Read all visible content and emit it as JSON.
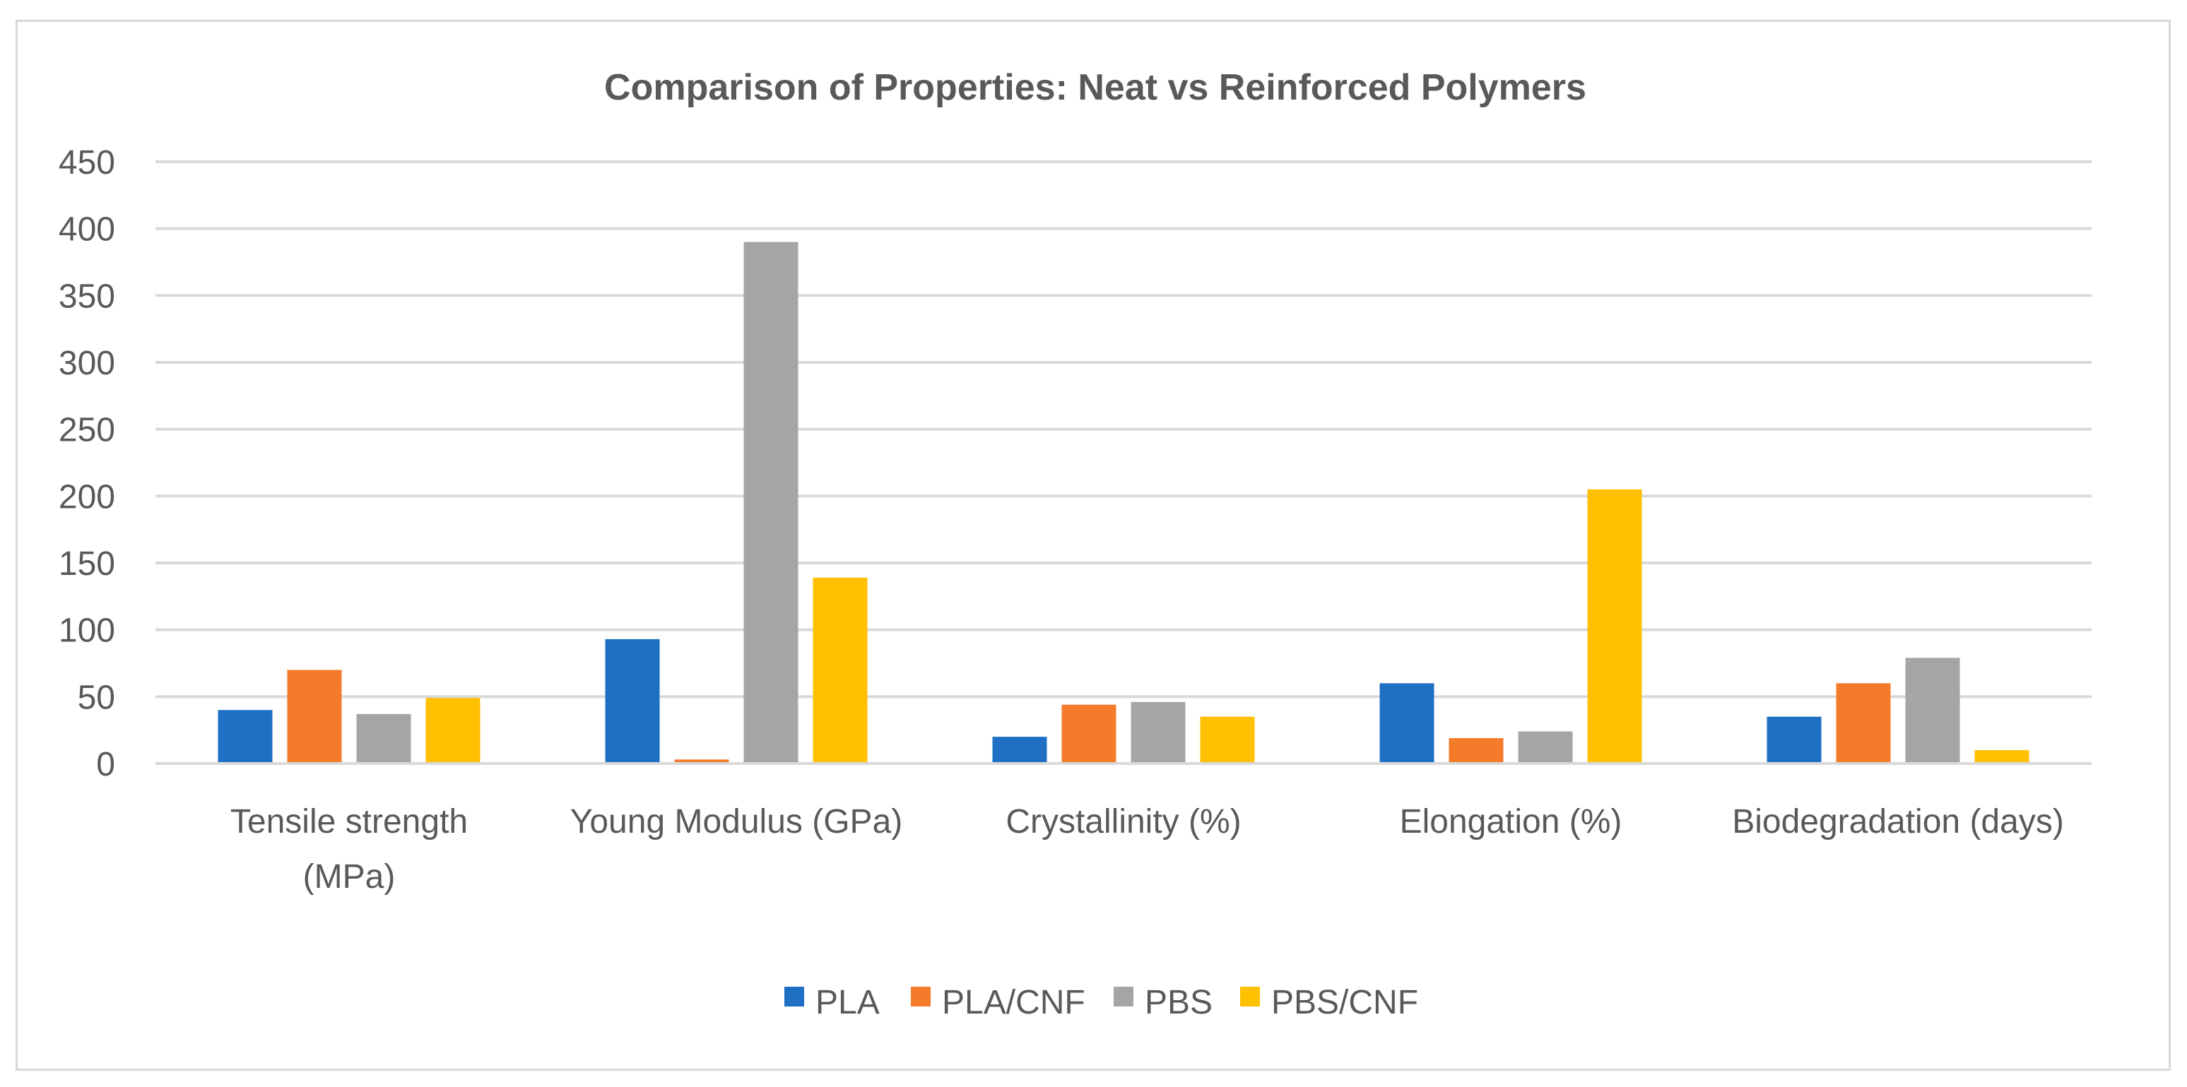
{
  "chart_data": {
    "type": "bar",
    "title": "Comparison of Properties: Neat vs Reinforced Polymers",
    "xlabel": "",
    "ylabel": "",
    "ylim": [
      0,
      450
    ],
    "yticks": [
      0,
      50,
      100,
      150,
      200,
      250,
      300,
      350,
      400,
      450
    ],
    "grid": true,
    "legend_position": "bottom",
    "categories": [
      [
        "Tensile strength",
        "(MPa)"
      ],
      [
        "Young Modulus (GPa)"
      ],
      [
        "Crystallinity (%)"
      ],
      [
        "Elongation (%)"
      ],
      [
        "Biodegradation (days)"
      ]
    ],
    "series": [
      {
        "name": "PLA",
        "color": "#1f6fc5",
        "values": [
          40,
          93,
          20,
          60,
          35
        ]
      },
      {
        "name": "PLA/CNF",
        "color": "#f47b2a",
        "values": [
          70,
          3,
          44,
          19,
          60
        ]
      },
      {
        "name": "PBS",
        "color": "#a5a5a5",
        "values": [
          37,
          390,
          46,
          24,
          79
        ]
      },
      {
        "name": "PBS/CNF",
        "color": "#ffc000",
        "values": [
          49,
          139,
          35,
          205,
          10
        ]
      }
    ]
  }
}
